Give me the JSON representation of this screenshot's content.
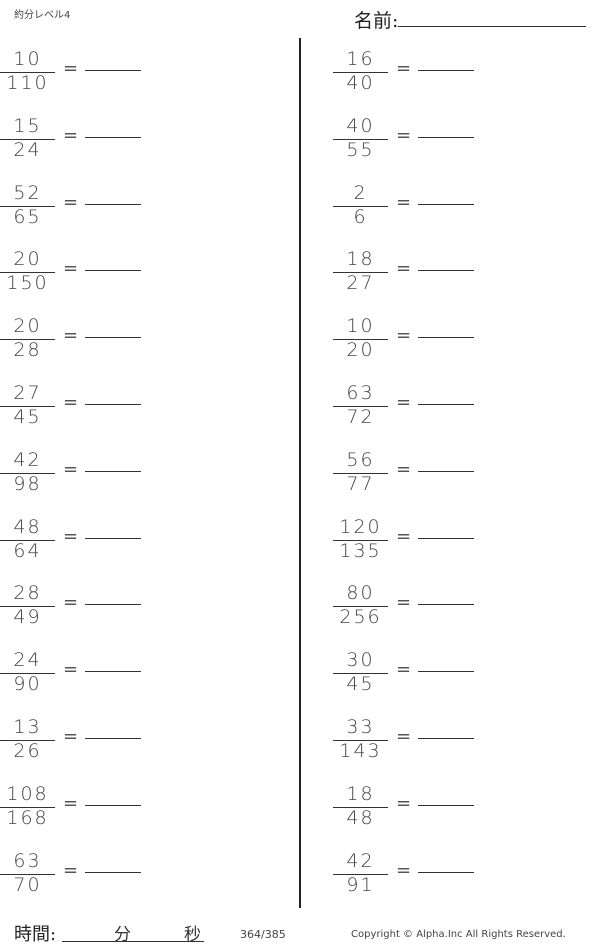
{
  "header": {
    "title": "約分レベル4",
    "name_label": "名前:"
  },
  "equals": "=",
  "left": [
    {
      "num": "10",
      "den": "110"
    },
    {
      "num": "15",
      "den": "24"
    },
    {
      "num": "52",
      "den": "65"
    },
    {
      "num": "20",
      "den": "150"
    },
    {
      "num": "20",
      "den": "28"
    },
    {
      "num": "27",
      "den": "45"
    },
    {
      "num": "42",
      "den": "98"
    },
    {
      "num": "48",
      "den": "64"
    },
    {
      "num": "28",
      "den": "49"
    },
    {
      "num": "24",
      "den": "90"
    },
    {
      "num": "13",
      "den": "26"
    },
    {
      "num": "108",
      "den": "168"
    },
    {
      "num": "63",
      "den": "70"
    }
  ],
  "right": [
    {
      "num": "16",
      "den": "40"
    },
    {
      "num": "40",
      "den": "55"
    },
    {
      "num": "2",
      "den": "6"
    },
    {
      "num": "18",
      "den": "27"
    },
    {
      "num": "10",
      "den": "20"
    },
    {
      "num": "63",
      "den": "72"
    },
    {
      "num": "56",
      "den": "77"
    },
    {
      "num": "120",
      "den": "135"
    },
    {
      "num": "80",
      "den": "256"
    },
    {
      "num": "30",
      "den": "45"
    },
    {
      "num": "33",
      "den": "143"
    },
    {
      "num": "18",
      "den": "48"
    },
    {
      "num": "42",
      "den": "91"
    }
  ],
  "footer": {
    "time_label": "時間:",
    "minutes": "分",
    "seconds": "秒",
    "page": "364/385",
    "copyright": "Copyright ©  Alpha.Inc All Rights Reserved."
  }
}
